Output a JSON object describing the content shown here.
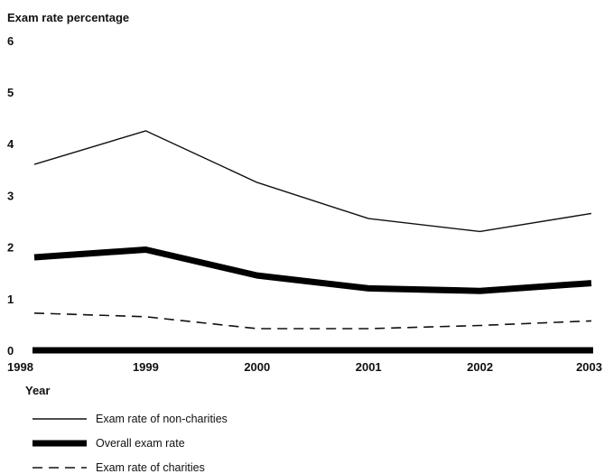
{
  "chart_data": {
    "type": "line",
    "ylabel": "Exam rate percentage",
    "xlabel": "Year",
    "categories": [
      "1998",
      "1999",
      "2000",
      "2001",
      "2002",
      "2003"
    ],
    "ylim": [
      0,
      6
    ],
    "yticks": [
      "0",
      "1",
      "2",
      "3",
      "4",
      "5",
      "6"
    ],
    "grid": false,
    "legend_position": "bottom-left",
    "series": [
      {
        "name": "Exam rate of non-charities",
        "style": "thin-solid",
        "color": "#111111",
        "values": [
          3.6,
          4.25,
          3.25,
          2.55,
          2.3,
          2.65
        ]
      },
      {
        "name": "Overall exam rate",
        "style": "thick-solid",
        "color": "#000000",
        "values": [
          1.8,
          1.95,
          1.45,
          1.2,
          1.15,
          1.3
        ]
      },
      {
        "name": "Exam rate of charities",
        "style": "dashed",
        "color": "#111111",
        "values": [
          0.72,
          0.65,
          0.42,
          0.42,
          0.48,
          0.57
        ]
      }
    ]
  }
}
